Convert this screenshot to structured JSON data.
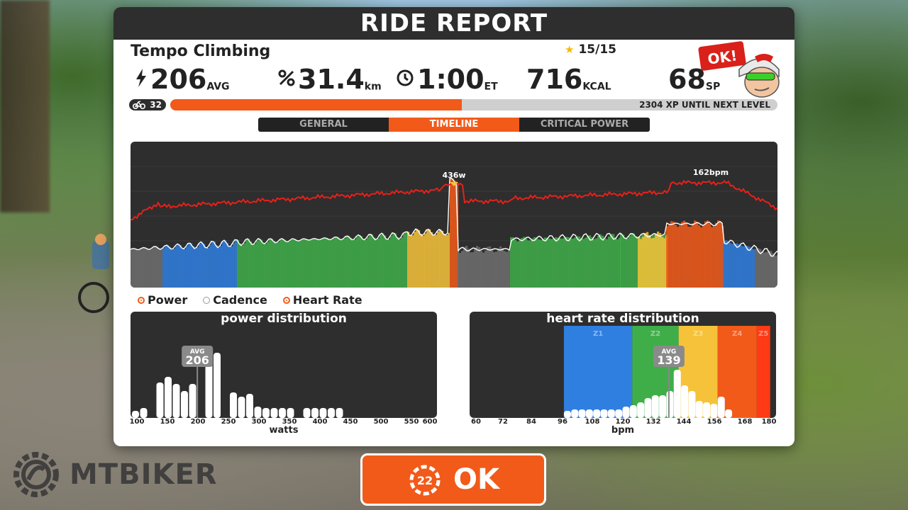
{
  "title": "RIDE REPORT",
  "workout_name": "Tempo Climbing",
  "stars": "15/15",
  "stats": {
    "power": {
      "value": "206",
      "unit": "AVG",
      "icon": "lightning-bolt-icon"
    },
    "distance": {
      "value": "31.4",
      "unit": "km",
      "icon": "distance-icon"
    },
    "time": {
      "value": "1:00",
      "unit": "ET",
      "icon": "clock-icon"
    },
    "calories": {
      "value": "716",
      "unit": "KCAL"
    },
    "sport_points": {
      "value": "68",
      "unit": "SP"
    }
  },
  "level": "32",
  "xp": {
    "fraction": 0.48,
    "text": "2304 XP UNTIL NEXT LEVEL"
  },
  "avatar_badge": "OK!",
  "tabs": [
    "GENERAL",
    "TIMELINE",
    "CRITICAL POWER"
  ],
  "active_tab": "TIMELINE",
  "timeline": {
    "power_peak_label": "436w",
    "hr_peak_label": "162bpm"
  },
  "legend": [
    "Power",
    "Cadence",
    "Heart Rate"
  ],
  "legend_state": [
    true,
    false,
    true
  ],
  "power_distribution": {
    "title": "power distribution",
    "avg_label": "AVG",
    "avg_value": "206",
    "x_ticks": [
      "100",
      "150",
      "200",
      "250",
      "300",
      "350",
      "400",
      "450",
      "500",
      "550",
      "600"
    ],
    "x_title": "watts"
  },
  "hr_distribution": {
    "title": "heart rate distribution",
    "zones": [
      "Z1",
      "Z2",
      "Z3",
      "Z4",
      "Z5"
    ],
    "avg_label": "AVG",
    "avg_value": "139",
    "x_ticks": [
      "60",
      "72",
      "84",
      "96",
      "108",
      "120",
      "132",
      "144",
      "156",
      "168",
      "180"
    ],
    "x_title": "bpm"
  },
  "ok_button": {
    "countdown": "22",
    "label": "OK"
  },
  "watermark": "MTBIKER",
  "colors": {
    "accent": "#f25a1a",
    "panel_dark": "#2e2e2e",
    "z1": "#2f7fe0",
    "z2": "#3fae49",
    "z3": "#f5c23a",
    "z4": "#f25a1a",
    "z5": "#ff3a14",
    "grey_zone": "#6f6f6f"
  }
}
